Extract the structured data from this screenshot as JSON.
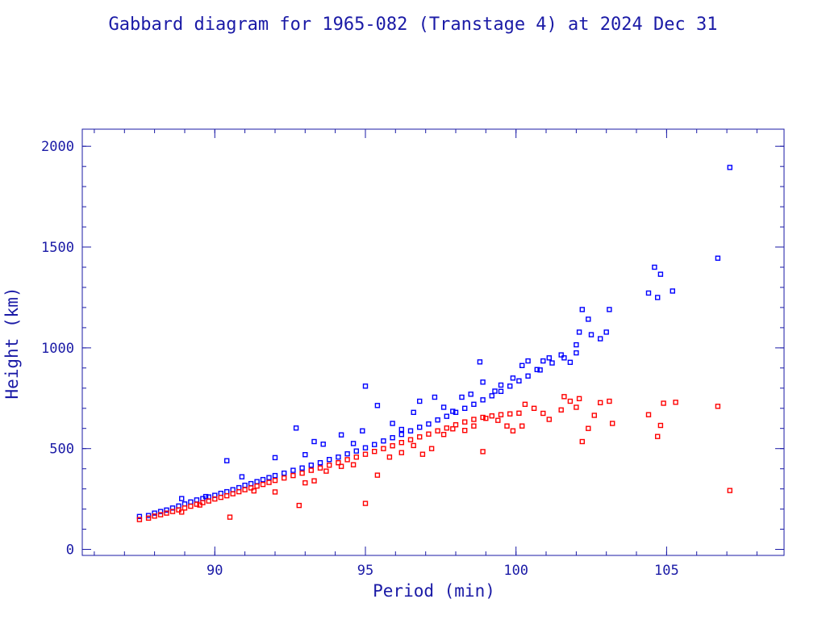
{
  "chart_data": {
    "type": "scatter",
    "title": "Gabbard diagram for 1965-082 (Transtage 4) at 2024 Dec 31",
    "xlabel": "Period (min)",
    "ylabel": "Height (km)",
    "xlim": [
      85.6,
      108.9
    ],
    "ylim": [
      -30,
      2085
    ],
    "xticks": [
      90,
      95,
      100,
      105
    ],
    "xtick_labels": [
      "90",
      "95",
      "100",
      "105"
    ],
    "yticks": [
      0,
      500,
      1000,
      1500,
      2000
    ],
    "ytick_labels": [
      "0",
      "500",
      "1000",
      "1500",
      "2000"
    ],
    "x_minor_step": 1,
    "y_minor_step": 100,
    "grid": false,
    "legend": "none",
    "colors": {
      "apogee": "#0000ff",
      "perigee": "#ff0000",
      "axes": "#1a1aa6",
      "text": "#1a1aa6"
    },
    "series": [
      {
        "role": "apogee",
        "color": "#0000ff",
        "points": [
          [
            87.5,
            163
          ],
          [
            87.8,
            168
          ],
          [
            88.0,
            180
          ],
          [
            88.2,
            188
          ],
          [
            88.4,
            195
          ],
          [
            88.6,
            205
          ],
          [
            88.8,
            215
          ],
          [
            89.0,
            225
          ],
          [
            89.2,
            235
          ],
          [
            89.4,
            245
          ],
          [
            89.6,
            252
          ],
          [
            89.8,
            260
          ],
          [
            90.0,
            268
          ],
          [
            90.2,
            278
          ],
          [
            90.4,
            286
          ],
          [
            90.6,
            296
          ],
          [
            90.8,
            306
          ],
          [
            91.0,
            318
          ],
          [
            91.2,
            326
          ],
          [
            91.4,
            336
          ],
          [
            91.6,
            346
          ],
          [
            91.8,
            356
          ],
          [
            92.0,
            366
          ],
          [
            92.3,
            378
          ],
          [
            92.6,
            392
          ],
          [
            92.9,
            404
          ],
          [
            93.2,
            418
          ],
          [
            93.5,
            430
          ],
          [
            93.8,
            446
          ],
          [
            94.1,
            458
          ],
          [
            94.4,
            474
          ],
          [
            94.7,
            488
          ],
          [
            95.0,
            504
          ],
          [
            95.3,
            520
          ],
          [
            95.6,
            538
          ],
          [
            95.9,
            554
          ],
          [
            96.2,
            570
          ],
          [
            96.5,
            588
          ],
          [
            96.8,
            606
          ],
          [
            97.1,
            622
          ],
          [
            97.4,
            642
          ],
          [
            97.7,
            660
          ],
          [
            98.0,
            680
          ],
          [
            98.3,
            700
          ],
          [
            98.6,
            720
          ],
          [
            98.9,
            742
          ],
          [
            99.2,
            762
          ],
          [
            99.5,
            784
          ],
          [
            99.8,
            810
          ],
          [
            100.1,
            836
          ],
          [
            100.4,
            860
          ],
          [
            100.8,
            890
          ],
          [
            101.2,
            925
          ],
          [
            101.6,
            950
          ],
          [
            102.0,
            975
          ],
          [
            88.9,
            252
          ],
          [
            89.7,
            262
          ],
          [
            90.4,
            440
          ],
          [
            90.9,
            360
          ],
          [
            92.0,
            455
          ],
          [
            92.7,
            602
          ],
          [
            93.0,
            470
          ],
          [
            93.3,
            535
          ],
          [
            93.6,
            522
          ],
          [
            94.2,
            568
          ],
          [
            94.6,
            525
          ],
          [
            94.9,
            588
          ],
          [
            95.0,
            810
          ],
          [
            95.4,
            714
          ],
          [
            95.9,
            625
          ],
          [
            96.2,
            595
          ],
          [
            96.6,
            680
          ],
          [
            96.8,
            735
          ],
          [
            97.3,
            755
          ],
          [
            97.6,
            705
          ],
          [
            97.9,
            685
          ],
          [
            98.2,
            755
          ],
          [
            98.5,
            770
          ],
          [
            98.8,
            930
          ],
          [
            98.9,
            830
          ],
          [
            99.3,
            785
          ],
          [
            99.5,
            815
          ],
          [
            99.9,
            850
          ],
          [
            100.2,
            912
          ],
          [
            100.4,
            935
          ],
          [
            100.7,
            892
          ],
          [
            100.9,
            935
          ],
          [
            101.1,
            950
          ],
          [
            101.5,
            965
          ],
          [
            101.8,
            928
          ],
          [
            102.0,
            1015
          ],
          [
            102.1,
            1078
          ],
          [
            102.2,
            1190
          ],
          [
            102.4,
            1142
          ],
          [
            102.5,
            1065
          ],
          [
            102.8,
            1045
          ],
          [
            103.0,
            1078
          ],
          [
            103.1,
            1190
          ],
          [
            104.4,
            1272
          ],
          [
            104.6,
            1400
          ],
          [
            104.7,
            1250
          ],
          [
            104.8,
            1365
          ],
          [
            105.2,
            1282
          ],
          [
            106.7,
            1445
          ],
          [
            107.1,
            1895
          ]
        ]
      },
      {
        "role": "perigee",
        "color": "#ff0000",
        "points": [
          [
            87.5,
            148
          ],
          [
            87.8,
            155
          ],
          [
            88.0,
            165
          ],
          [
            88.2,
            172
          ],
          [
            88.4,
            180
          ],
          [
            88.6,
            188
          ],
          [
            88.8,
            196
          ],
          [
            89.0,
            205
          ],
          [
            89.2,
            214
          ],
          [
            89.4,
            224
          ],
          [
            89.6,
            232
          ],
          [
            89.8,
            240
          ],
          [
            90.0,
            250
          ],
          [
            90.2,
            258
          ],
          [
            90.4,
            266
          ],
          [
            90.6,
            276
          ],
          [
            90.8,
            286
          ],
          [
            91.0,
            296
          ],
          [
            91.2,
            305
          ],
          [
            91.4,
            314
          ],
          [
            91.6,
            322
          ],
          [
            91.8,
            332
          ],
          [
            92.0,
            342
          ],
          [
            92.3,
            354
          ],
          [
            92.6,
            366
          ],
          [
            92.9,
            378
          ],
          [
            93.2,
            392
          ],
          [
            93.5,
            404
          ],
          [
            93.8,
            418
          ],
          [
            94.1,
            430
          ],
          [
            94.4,
            445
          ],
          [
            94.7,
            458
          ],
          [
            95.0,
            472
          ],
          [
            95.3,
            486
          ],
          [
            95.6,
            500
          ],
          [
            95.9,
            514
          ],
          [
            96.2,
            530
          ],
          [
            96.5,
            544
          ],
          [
            96.8,
            558
          ],
          [
            97.1,
            572
          ],
          [
            97.4,
            588
          ],
          [
            97.7,
            602
          ],
          [
            98.0,
            618
          ],
          [
            98.3,
            632
          ],
          [
            98.6,
            645
          ],
          [
            98.9,
            655
          ],
          [
            99.2,
            662
          ],
          [
            99.5,
            668
          ],
          [
            99.8,
            672
          ],
          [
            100.1,
            676
          ],
          [
            88.9,
            185
          ],
          [
            89.5,
            220
          ],
          [
            90.5,
            160
          ],
          [
            91.3,
            290
          ],
          [
            92.0,
            285
          ],
          [
            92.8,
            218
          ],
          [
            93.0,
            330
          ],
          [
            93.3,
            340
          ],
          [
            93.7,
            388
          ],
          [
            94.2,
            412
          ],
          [
            94.6,
            420
          ],
          [
            95.0,
            228
          ],
          [
            95.4,
            368
          ],
          [
            95.8,
            458
          ],
          [
            96.2,
            480
          ],
          [
            96.6,
            515
          ],
          [
            96.9,
            472
          ],
          [
            97.2,
            500
          ],
          [
            97.6,
            570
          ],
          [
            97.9,
            598
          ],
          [
            98.3,
            590
          ],
          [
            98.6,
            612
          ],
          [
            98.9,
            485
          ],
          [
            99.0,
            650
          ],
          [
            99.4,
            640
          ],
          [
            99.7,
            612
          ],
          [
            99.9,
            588
          ],
          [
            100.2,
            612
          ],
          [
            100.3,
            720
          ],
          [
            100.6,
            700
          ],
          [
            100.9,
            675
          ],
          [
            101.1,
            645
          ],
          [
            101.5,
            692
          ],
          [
            101.6,
            758
          ],
          [
            101.8,
            735
          ],
          [
            102.0,
            705
          ],
          [
            102.1,
            748
          ],
          [
            102.2,
            535
          ],
          [
            102.4,
            600
          ],
          [
            102.6,
            665
          ],
          [
            102.8,
            728
          ],
          [
            103.1,
            735
          ],
          [
            103.2,
            625
          ],
          [
            104.4,
            668
          ],
          [
            104.7,
            560
          ],
          [
            104.8,
            615
          ],
          [
            104.9,
            725
          ],
          [
            105.3,
            730
          ],
          [
            106.7,
            710
          ],
          [
            107.1,
            292
          ]
        ]
      }
    ]
  }
}
